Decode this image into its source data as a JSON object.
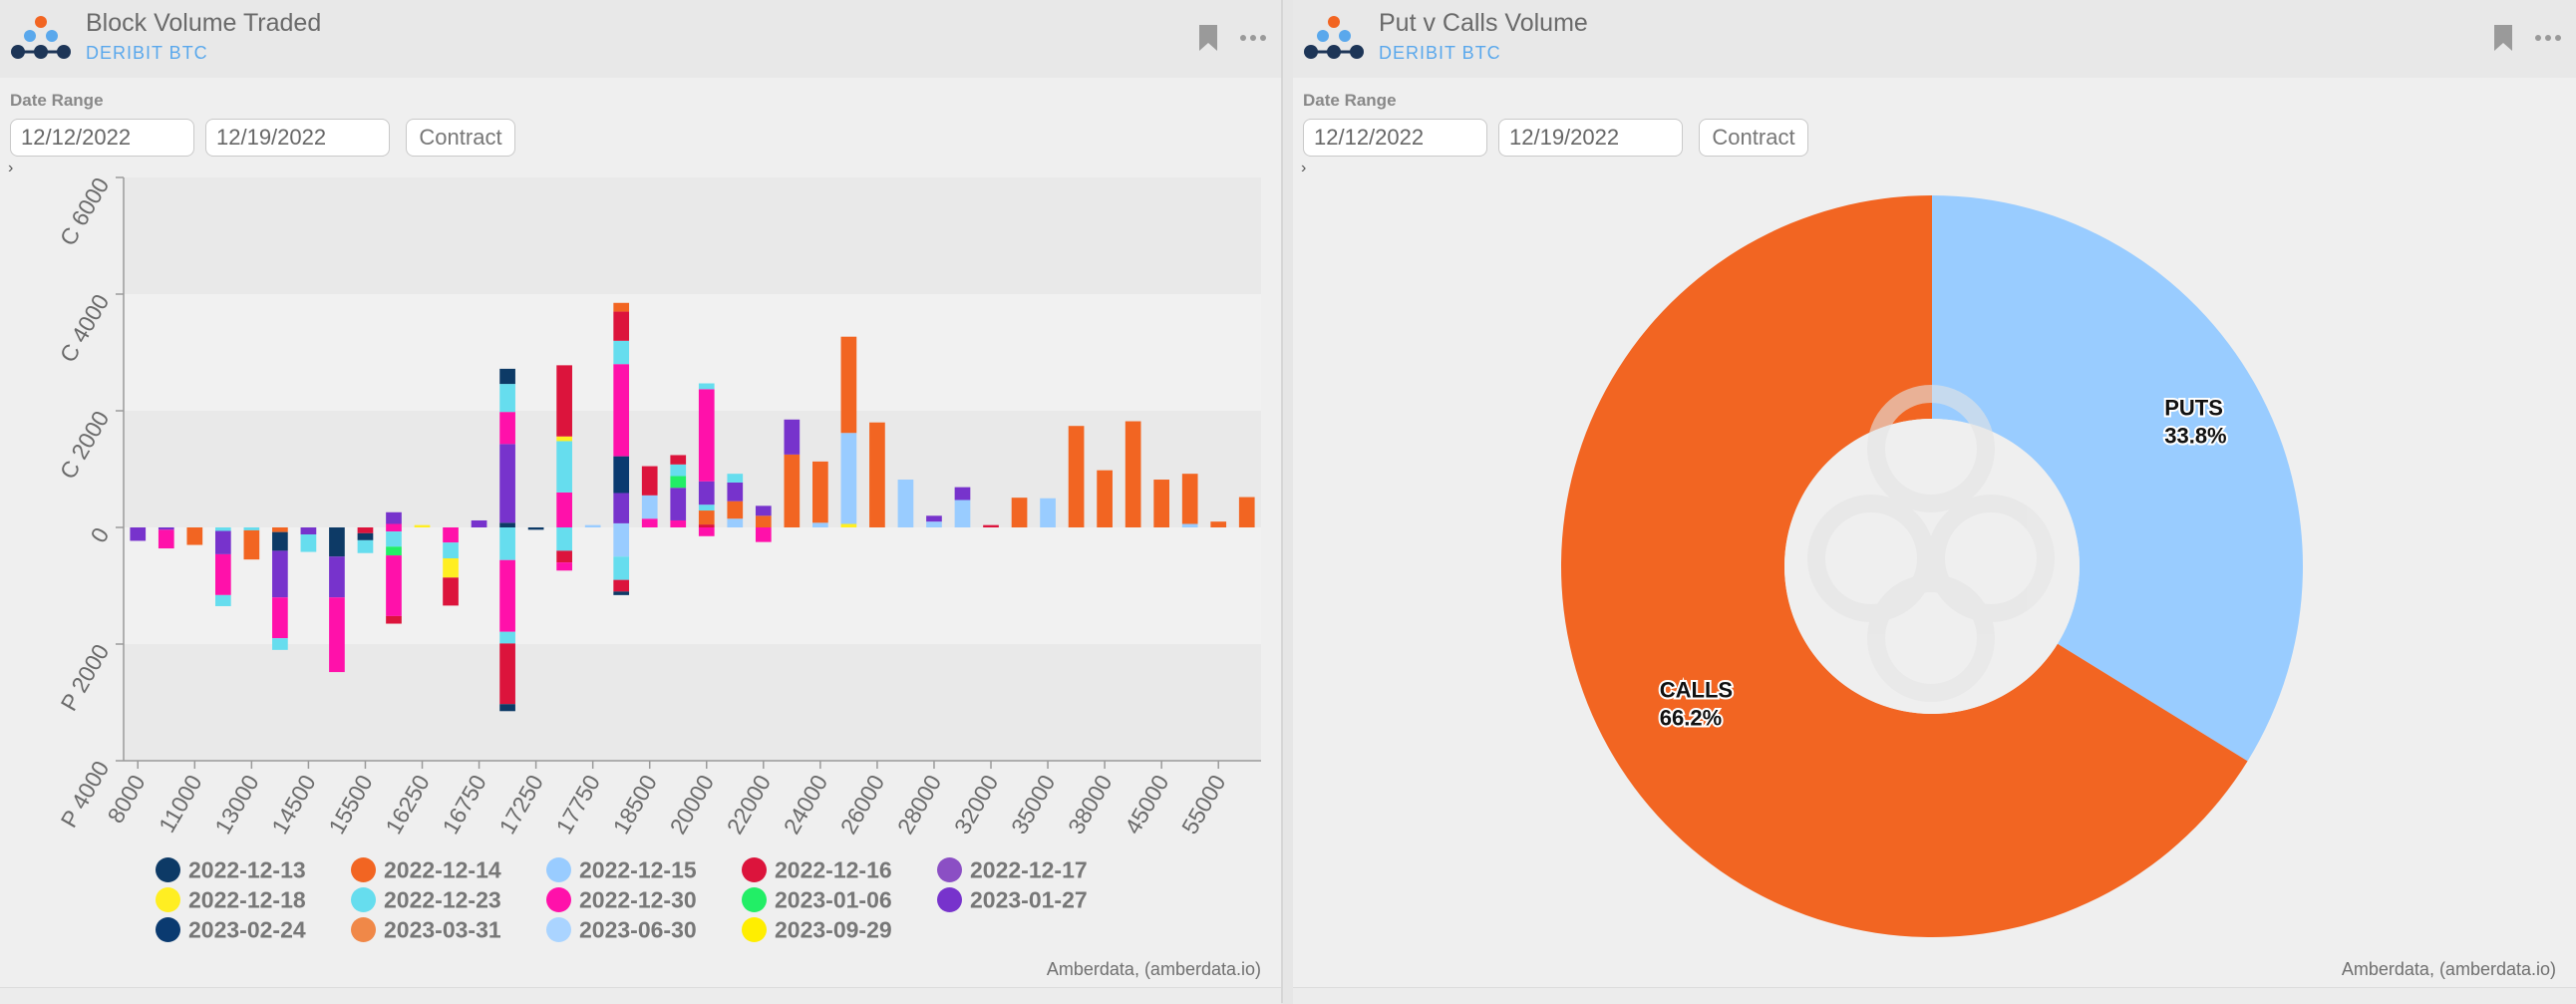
{
  "colors": {
    "accent_blue": "#5aa8ec",
    "calls": "#f26522",
    "puts": "#99ccff"
  },
  "left_panel": {
    "title": "Block Volume Traded",
    "subtitle": "DERIBIT BTC",
    "bookmark_icon": "bookmark-icon",
    "more_icon": "more-icon",
    "date_range_label": "Date Range",
    "start_date": "12/12/2022",
    "end_date": "12/19/2022",
    "contract_label": "Contract",
    "expander": "›",
    "credit": "Amberdata, (amberdata.io)"
  },
  "right_panel": {
    "title": "Put v Calls Volume",
    "subtitle": "DERIBIT BTC",
    "bookmark_icon": "bookmark-icon",
    "more_icon": "more-icon",
    "date_range_label": "Date Range",
    "start_date": "12/12/2022",
    "end_date": "12/19/2022",
    "contract_label": "Contract",
    "expander": "›",
    "credit": "Amberdata, (amberdata.io)"
  },
  "chart_data": [
    {
      "type": "bar",
      "stacked": true,
      "ylim": [
        -4000,
        6000
      ],
      "y_ticks": [
        {
          "v": 6000,
          "label": "C 6000"
        },
        {
          "v": 4000,
          "label": "C 4000"
        },
        {
          "v": 2000,
          "label": "C 2000"
        },
        {
          "v": 0,
          "label": "0"
        },
        {
          "v": -2000,
          "label": "P 2000"
        },
        {
          "v": -4000,
          "label": "P 4000"
        }
      ],
      "x_labels": [
        "8000",
        "11000",
        "13000",
        "14500",
        "15500",
        "16250",
        "16750",
        "17250",
        "17750",
        "18500",
        "20000",
        "22000",
        "24000",
        "26000",
        "28000",
        "32000",
        "35000",
        "38000",
        "45000",
        "55000"
      ],
      "legend_placement": "bottom",
      "legend": [
        {
          "name": "2022-12-13",
          "color": "#0d3a66"
        },
        {
          "name": "2022-12-14",
          "color": "#f26522"
        },
        {
          "name": "2022-12-15",
          "color": "#99ccff"
        },
        {
          "name": "2022-12-16",
          "color": "#dc143c"
        },
        {
          "name": "2022-12-17",
          "color": "#8b4fc4"
        },
        {
          "name": "2022-12-18",
          "color": "#ffee22"
        },
        {
          "name": "2022-12-23",
          "color": "#66ddee"
        },
        {
          "name": "2022-12-30",
          "color": "#ff11aa"
        },
        {
          "name": "2023-01-06",
          "color": "#22ee66"
        },
        {
          "name": "2023-01-27",
          "color": "#7733cc"
        },
        {
          "name": "2023-02-24",
          "color": "#0a3a70"
        },
        {
          "name": "2023-03-31",
          "color": "#f08848"
        },
        {
          "name": "2023-06-30",
          "color": "#aad4ff"
        },
        {
          "name": "2023-09-29",
          "color": "#ffee00"
        }
      ],
      "bars": [
        {
          "x": 0,
          "calls": [],
          "puts": [
            [
              "2023-01-27",
              230
            ]
          ]
        },
        {
          "x": 1,
          "calls": [],
          "puts": [
            [
              "2023-01-27",
              40
            ],
            [
              "2022-12-30",
              320
            ]
          ]
        },
        {
          "x": 2,
          "calls": [],
          "puts": [
            [
              "2022-12-14",
              300
            ]
          ]
        },
        {
          "x": 3,
          "calls": [],
          "puts": [
            [
              "2022-12-23",
              60
            ],
            [
              "2023-01-27",
              400
            ],
            [
              "2022-12-30",
              700
            ],
            [
              "2022-12-23",
              190
            ]
          ]
        },
        {
          "x": 4,
          "calls": [],
          "puts": [
            [
              "2022-12-23",
              50
            ],
            [
              "2022-12-14",
              500
            ]
          ]
        },
        {
          "x": 5,
          "calls": [],
          "puts": [
            [
              "2022-12-14",
              80
            ],
            [
              "2022-12-13",
              320
            ],
            [
              "2023-01-27",
              800
            ],
            [
              "2022-12-30",
              700
            ],
            [
              "2022-12-23",
              200
            ]
          ]
        },
        {
          "x": 6,
          "calls": [],
          "puts": [
            [
              "2023-01-27",
              120
            ],
            [
              "2022-12-23",
              300
            ]
          ]
        },
        {
          "x": 7,
          "calls": [],
          "puts": [
            [
              "2022-12-13",
              500
            ],
            [
              "2023-01-27",
              700
            ],
            [
              "2022-12-30",
              1280
            ]
          ]
        },
        {
          "x": 8,
          "calls": [],
          "puts": [
            [
              "2022-12-16",
              100
            ],
            [
              "2022-12-13",
              120
            ],
            [
              "2022-12-23",
              220
            ]
          ]
        },
        {
          "x": 9,
          "calls": [
            [
              "2022-12-30",
              60
            ],
            [
              "2023-01-27",
              200
            ]
          ],
          "puts": [
            [
              "2022-12-30",
              70
            ],
            [
              "2022-12-23",
              260
            ],
            [
              "2023-01-06",
              150
            ],
            [
              "2022-12-30",
              1040
            ],
            [
              "2022-12-16",
              130
            ]
          ]
        },
        {
          "x": 10,
          "calls": [
            [
              "2022-12-18",
              40
            ]
          ],
          "puts": []
        },
        {
          "x": 11,
          "calls": [],
          "puts": [
            [
              "2022-12-30",
              260
            ],
            [
              "2022-12-23",
              270
            ],
            [
              "2022-12-18",
              330
            ],
            [
              "2022-12-16",
              480
            ]
          ]
        },
        {
          "x": 12,
          "calls": [
            [
              "2023-01-27",
              120
            ]
          ],
          "puts": []
        },
        {
          "x": 13,
          "calls": [
            [
              "2022-12-13",
              80
            ],
            [
              "2023-01-27",
              1350
            ],
            [
              "2022-12-30",
              550
            ],
            [
              "2022-12-23",
              480
            ],
            [
              "2022-12-13",
              260
            ]
          ],
          "puts": [
            [
              "2022-12-23",
              560
            ],
            [
              "2022-12-30",
              1230
            ],
            [
              "2022-12-23",
              200
            ],
            [
              "2022-12-16",
              1040
            ],
            [
              "2022-12-13",
              120
            ]
          ]
        },
        {
          "x": 14,
          "calls": [],
          "puts": [
            [
              "2022-12-13",
              40
            ]
          ]
        },
        {
          "x": 15,
          "calls": [
            [
              "2022-12-30",
              600
            ],
            [
              "2022-12-23",
              880
            ],
            [
              "2022-12-18",
              80
            ],
            [
              "2022-12-16",
              1220
            ]
          ],
          "puts": [
            [
              "2022-12-23",
              400
            ],
            [
              "2022-12-16",
              200
            ],
            [
              "2022-12-30",
              140
            ]
          ]
        },
        {
          "x": 16,
          "calls": [
            [
              "2022-12-15",
              40
            ]
          ],
          "puts": []
        },
        {
          "x": 17,
          "calls": [
            [
              "2022-12-15",
              70
            ],
            [
              "2023-01-27",
              520
            ],
            [
              "2023-02-24",
              630
            ],
            [
              "2022-12-30",
              1580
            ],
            [
              "2022-12-23",
              400
            ],
            [
              "2022-12-16",
              500
            ],
            [
              "2022-12-14",
              150
            ]
          ],
          "puts": [
            [
              "2022-12-15",
              500
            ],
            [
              "2022-12-23",
              400
            ],
            [
              "2022-12-16",
              200
            ],
            [
              "2022-12-13",
              60
            ]
          ]
        },
        {
          "x": 18,
          "calls": [
            [
              "2022-12-30",
              150
            ],
            [
              "2022-12-15",
              400
            ],
            [
              "2022-12-16",
              500
            ]
          ],
          "puts": []
        },
        {
          "x": 19,
          "calls": [
            [
              "2022-12-30",
              120
            ],
            [
              "2023-01-27",
              560
            ],
            [
              "2023-01-06",
              200
            ],
            [
              "2022-12-23",
              200
            ],
            [
              "2022-12-16",
              160
            ]
          ],
          "puts": []
        },
        {
          "x": 20,
          "calls": [
            [
              "2022-12-16",
              50
            ],
            [
              "2022-12-14",
              240
            ],
            [
              "2022-12-23",
              100
            ],
            [
              "2023-01-27",
              400
            ],
            [
              "2022-12-30",
              1580
            ],
            [
              "2022-12-23",
              100
            ]
          ],
          "puts": [
            [
              "2022-12-30",
              150
            ]
          ]
        },
        {
          "x": 21,
          "calls": [
            [
              "2022-12-15",
              150
            ],
            [
              "2022-12-14",
              300
            ],
            [
              "2023-01-27",
              320
            ],
            [
              "2022-12-23",
              150
            ]
          ],
          "puts": []
        },
        {
          "x": 22,
          "calls": [
            [
              "2022-12-14",
              200
            ],
            [
              "2023-01-27",
              170
            ]
          ],
          "puts": [
            [
              "2022-12-30",
              250
            ]
          ]
        },
        {
          "x": 23,
          "calls": [
            [
              "2022-12-14",
              1250
            ],
            [
              "2023-01-27",
              600
            ]
          ],
          "puts": []
        },
        {
          "x": 24,
          "calls": [
            [
              "2022-12-15",
              80
            ],
            [
              "2022-12-14",
              1050
            ]
          ],
          "puts": []
        },
        {
          "x": 25,
          "calls": [
            [
              "2022-12-18",
              60
            ],
            [
              "2022-12-15",
              1560
            ],
            [
              "2022-12-14",
              1650
            ]
          ],
          "puts": []
        },
        {
          "x": 26,
          "calls": [
            [
              "2022-12-14",
              1800
            ]
          ],
          "puts": []
        },
        {
          "x": 27,
          "calls": [
            [
              "2022-12-15",
              820
            ]
          ],
          "puts": []
        },
        {
          "x": 28,
          "calls": [
            [
              "2022-12-15",
              100
            ],
            [
              "2023-01-27",
              100
            ]
          ],
          "puts": []
        },
        {
          "x": 29,
          "calls": [
            [
              "2022-12-15",
              470
            ],
            [
              "2023-01-27",
              220
            ]
          ],
          "puts": []
        },
        {
          "x": 30,
          "calls": [
            [
              "2022-12-16",
              40
            ]
          ],
          "puts": []
        },
        {
          "x": 31,
          "calls": [
            [
              "2022-12-14",
              510
            ]
          ],
          "puts": []
        },
        {
          "x": 32,
          "calls": [
            [
              "2022-12-15",
              500
            ]
          ],
          "puts": []
        },
        {
          "x": 33,
          "calls": [
            [
              "2022-12-14",
              1740
            ]
          ],
          "puts": []
        },
        {
          "x": 34,
          "calls": [
            [
              "2022-12-14",
              980
            ]
          ],
          "puts": []
        },
        {
          "x": 35,
          "calls": [
            [
              "2022-12-14",
              1820
            ]
          ],
          "puts": []
        },
        {
          "x": 36,
          "calls": [
            [
              "2022-12-14",
              820
            ]
          ],
          "puts": []
        },
        {
          "x": 37,
          "calls": [
            [
              "2022-12-15",
              60
            ],
            [
              "2022-12-14",
              860
            ]
          ],
          "puts": []
        },
        {
          "x": 38,
          "calls": [
            [
              "2022-12-14",
              100
            ]
          ],
          "puts": []
        },
        {
          "x": 39,
          "calls": [
            [
              "2022-12-14",
              520
            ]
          ],
          "puts": []
        }
      ]
    },
    {
      "type": "pie",
      "donut": true,
      "slices": [
        {
          "label": "PUTS",
          "percent": 33.8,
          "percent_label": "33.8%",
          "color": "#99ccff"
        },
        {
          "label": "CALLS",
          "percent": 66.2,
          "percent_label": "66.2%",
          "color": "#f26522"
        }
      ]
    }
  ]
}
